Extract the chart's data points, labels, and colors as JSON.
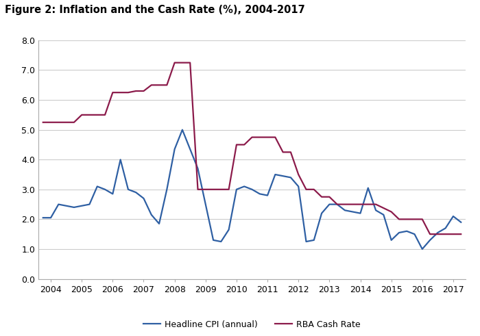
{
  "title": "Figure 2: Inflation and the Cash Rate (%), 2004-2017",
  "cpi_x": [
    2003.75,
    2004.0,
    2004.25,
    2004.5,
    2004.75,
    2005.0,
    2005.25,
    2005.5,
    2005.75,
    2006.0,
    2006.25,
    2006.5,
    2006.75,
    2007.0,
    2007.25,
    2007.5,
    2007.75,
    2008.0,
    2008.25,
    2008.5,
    2008.75,
    2009.0,
    2009.25,
    2009.5,
    2009.75,
    2010.0,
    2010.25,
    2010.5,
    2010.75,
    2011.0,
    2011.25,
    2011.5,
    2011.75,
    2012.0,
    2012.25,
    2012.5,
    2012.75,
    2013.0,
    2013.25,
    2013.5,
    2013.75,
    2014.0,
    2014.25,
    2014.5,
    2014.75,
    2015.0,
    2015.25,
    2015.5,
    2015.75,
    2016.0,
    2016.25,
    2016.5,
    2016.75,
    2017.0,
    2017.25
  ],
  "cpi_y": [
    2.05,
    2.05,
    2.5,
    2.45,
    2.4,
    2.45,
    2.5,
    3.1,
    3.0,
    2.85,
    4.0,
    3.0,
    2.9,
    2.7,
    2.15,
    1.85,
    3.0,
    4.35,
    5.0,
    4.35,
    3.7,
    2.5,
    1.3,
    1.25,
    1.65,
    3.0,
    3.1,
    3.0,
    2.85,
    2.8,
    3.5,
    3.45,
    3.4,
    3.1,
    1.25,
    1.3,
    2.2,
    2.5,
    2.5,
    2.3,
    2.25,
    2.2,
    3.05,
    2.3,
    2.15,
    1.3,
    1.55,
    1.6,
    1.5,
    1.0,
    1.3,
    1.55,
    1.7,
    2.1,
    1.9
  ],
  "cash_x": [
    2003.75,
    2004.0,
    2004.25,
    2004.5,
    2004.75,
    2005.0,
    2005.25,
    2005.5,
    2005.75,
    2006.0,
    2006.25,
    2006.5,
    2006.75,
    2007.0,
    2007.25,
    2007.5,
    2007.75,
    2008.0,
    2008.25,
    2008.5,
    2008.75,
    2009.0,
    2009.25,
    2009.75,
    2010.0,
    2010.25,
    2010.5,
    2010.75,
    2011.0,
    2011.25,
    2011.5,
    2011.75,
    2012.0,
    2012.25,
    2012.5,
    2012.75,
    2013.0,
    2013.25,
    2013.5,
    2014.0,
    2014.25,
    2014.5,
    2015.0,
    2015.25,
    2015.5,
    2016.0,
    2016.25,
    2016.5,
    2017.0,
    2017.25
  ],
  "cash_y": [
    5.25,
    5.25,
    5.25,
    5.25,
    5.25,
    5.5,
    5.5,
    5.5,
    5.5,
    6.25,
    6.25,
    6.25,
    6.3,
    6.3,
    6.5,
    6.5,
    6.5,
    7.25,
    7.25,
    7.25,
    3.0,
    3.0,
    3.0,
    3.0,
    4.5,
    4.5,
    4.75,
    4.75,
    4.75,
    4.75,
    4.25,
    4.25,
    3.5,
    3.0,
    3.0,
    2.75,
    2.75,
    2.5,
    2.5,
    2.5,
    2.5,
    2.5,
    2.25,
    2.0,
    2.0,
    2.0,
    1.5,
    1.5,
    1.5,
    1.5
  ],
  "cpi_color": "#2e5fa3",
  "cash_color": "#8b1a4a",
  "cpi_label": "Headline CPI (annual)",
  "cash_label": "RBA Cash Rate",
  "ylim": [
    0.0,
    8.0
  ],
  "yticks": [
    0.0,
    1.0,
    2.0,
    3.0,
    4.0,
    5.0,
    6.0,
    7.0,
    8.0
  ],
  "xticks": [
    2004,
    2005,
    2006,
    2007,
    2008,
    2009,
    2010,
    2011,
    2012,
    2013,
    2014,
    2015,
    2016,
    2017
  ],
  "xlim_left": 2003.6,
  "xlim_right": 2017.4,
  "grid_color": "#cccccc",
  "background_color": "#ffffff",
  "linewidth": 1.6,
  "title_fontsize": 10.5,
  "tick_fontsize": 9
}
